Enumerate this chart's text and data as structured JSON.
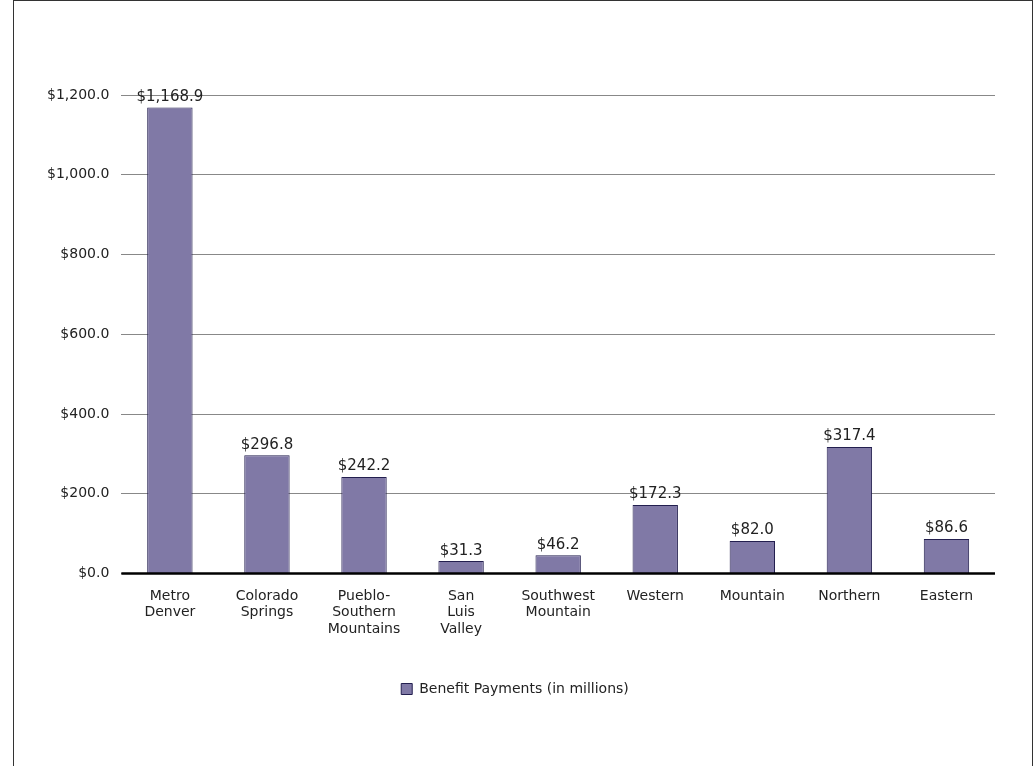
{
  "chart_data": {
    "type": "bar",
    "categories": [
      "Metro Denver",
      "Colorado Springs",
      "Pueblo-Southern Mountains",
      "San Luis Valley",
      "Southwest Mountain",
      "Western",
      "Mountain",
      "Northern",
      "Eastern"
    ],
    "series": [
      {
        "name": "Benefit Payments (in millions)",
        "color": "#8079a6",
        "values": [
          1168.9,
          296.8,
          242.2,
          31.3,
          46.2,
          172.3,
          82.0,
          317.4,
          86.6
        ],
        "value_labels": [
          "$1,168.9",
          "$296.8",
          "$242.2",
          "$31.3",
          "$46.2",
          "$172.3",
          "$82.0",
          "$317.4",
          "$86.6"
        ]
      }
    ],
    "ylim": [
      0,
      1200
    ],
    "yticks": [
      {
        "value": 0,
        "label": "$0.0"
      },
      {
        "value": 200,
        "label": "$200.0"
      },
      {
        "value": 400,
        "label": "$400.0"
      },
      {
        "value": 600,
        "label": "$600.0"
      },
      {
        "value": 800,
        "label": "$800.0"
      },
      {
        "value": 1000,
        "label": "$1,000.0"
      },
      {
        "value": 1200,
        "label": "$1,200.0"
      }
    ],
    "grid": "y",
    "legend": "bottom"
  }
}
